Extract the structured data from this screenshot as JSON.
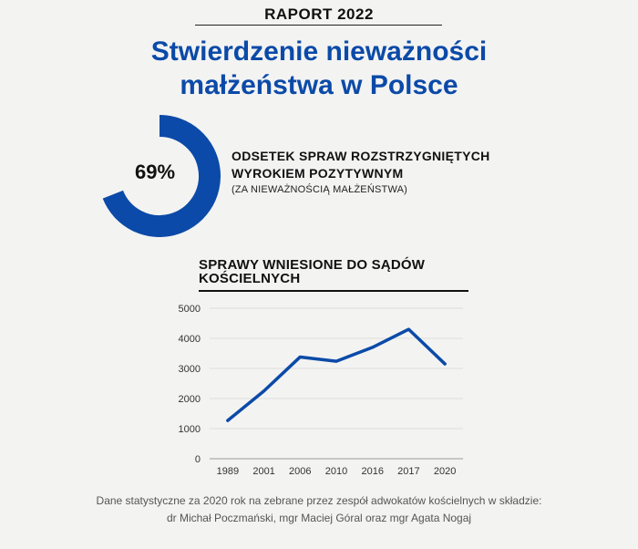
{
  "header": {
    "report_label": "RAPORT 2022",
    "title_line1": "Stwierdzenie nieważności",
    "title_line2": "małżeństwa w Polsce"
  },
  "stat": {
    "value": "69%",
    "percent": 69,
    "heading_line1": "ODSETEK SPRAW ROZSTRZYGNIĘTYCH",
    "heading_line2": "WYROKIEM POZYTYWNYM",
    "subtext": "(ZA NIEWAŻNOŚCIĄ MAŁŻEŃSTWA)",
    "color": "#0b4aa8"
  },
  "chart_section": {
    "title_line1": "SPRAWY WNIESIONE DO SĄDÓW",
    "title_line2": "KOŚCIELNYCH"
  },
  "chart_data": {
    "type": "line",
    "title": "SPRAWY WNIESIONE DO SĄDÓW KOŚCIELNYCH",
    "xlabel": "",
    "ylabel": "",
    "categories": [
      "1989",
      "2001",
      "2006",
      "2010",
      "2016",
      "2017",
      "2020"
    ],
    "values": [
      1270,
      2250,
      3380,
      3240,
      3700,
      4300,
      3150
    ],
    "ylim": [
      0,
      5000
    ],
    "yticks": [
      "0",
      "1000",
      "2000",
      "3000",
      "4000",
      "5000"
    ],
    "grid": true,
    "legend": "none",
    "line_color": "#0b4aa8"
  },
  "footer": {
    "line1": "Dane statystyczne za 2020 rok  na zebrane przez zespół adwokatów kościelnych w składzie:",
    "line2": "dr Michał Poczmański, mgr Maciej Góral oraz mgr Agata Nogaj"
  }
}
